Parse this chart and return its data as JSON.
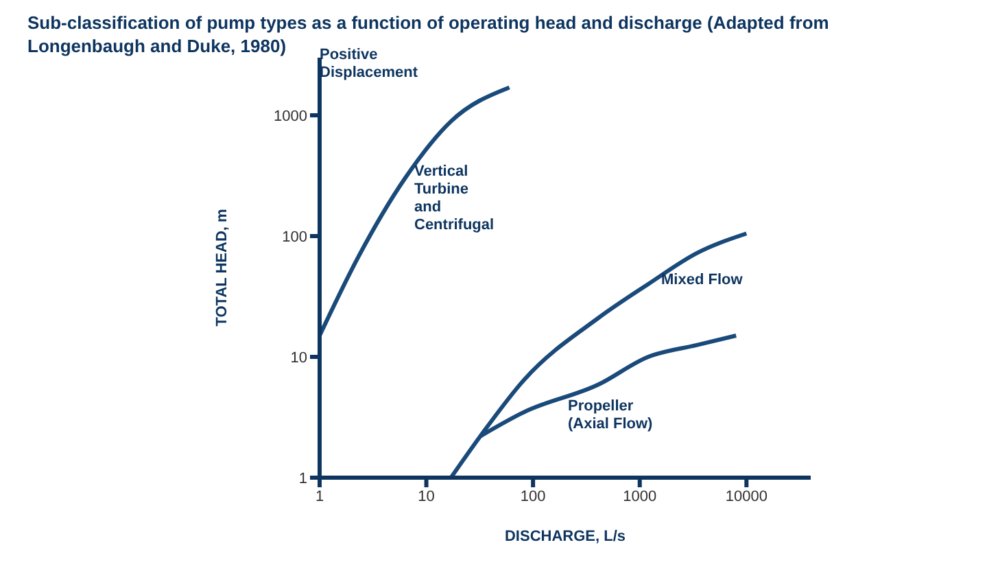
{
  "chart_data": {
    "type": "line",
    "title": "Sub-classification of pump types as a function of operating head and discharge (Adapted from Longenbaugh and Duke, 1980)",
    "xlabel": "DISCHARGE, L/s",
    "ylabel": "TOTAL HEAD, m",
    "log": "xy",
    "marker": "none",
    "xlim": [
      1,
      40000
    ],
    "ylim": [
      1,
      3000
    ],
    "xticks": [
      1,
      10,
      100,
      1000,
      10000
    ],
    "yticks": [
      1,
      10,
      100,
      1000
    ],
    "series": [
      {
        "color": "#1a4a7a",
        "x": [
          1,
          2.3,
          6.3,
          17,
          60
        ],
        "values": [
          15,
          67,
          300,
          890,
          1700
        ]
      },
      {
        "color": "#1a4a7a",
        "x": [
          17,
          32,
          83,
          410,
          1200,
          3400,
          10000
        ],
        "values": [
          1,
          2.2,
          6.5,
          21,
          40,
          72,
          105
        ]
      },
      {
        "color": "#1a4a7a",
        "x": [
          32,
          83,
          410,
          1200,
          3400,
          8000
        ],
        "values": [
          2.2,
          3.5,
          5.9,
          10,
          12.5,
          15
        ]
      }
    ],
    "annotations": [
      "Positive Displacement",
      "Vertical Turbine and Centrifugal",
      "Mixed Flow",
      "Propeller (Axial Flow)"
    ]
  }
}
